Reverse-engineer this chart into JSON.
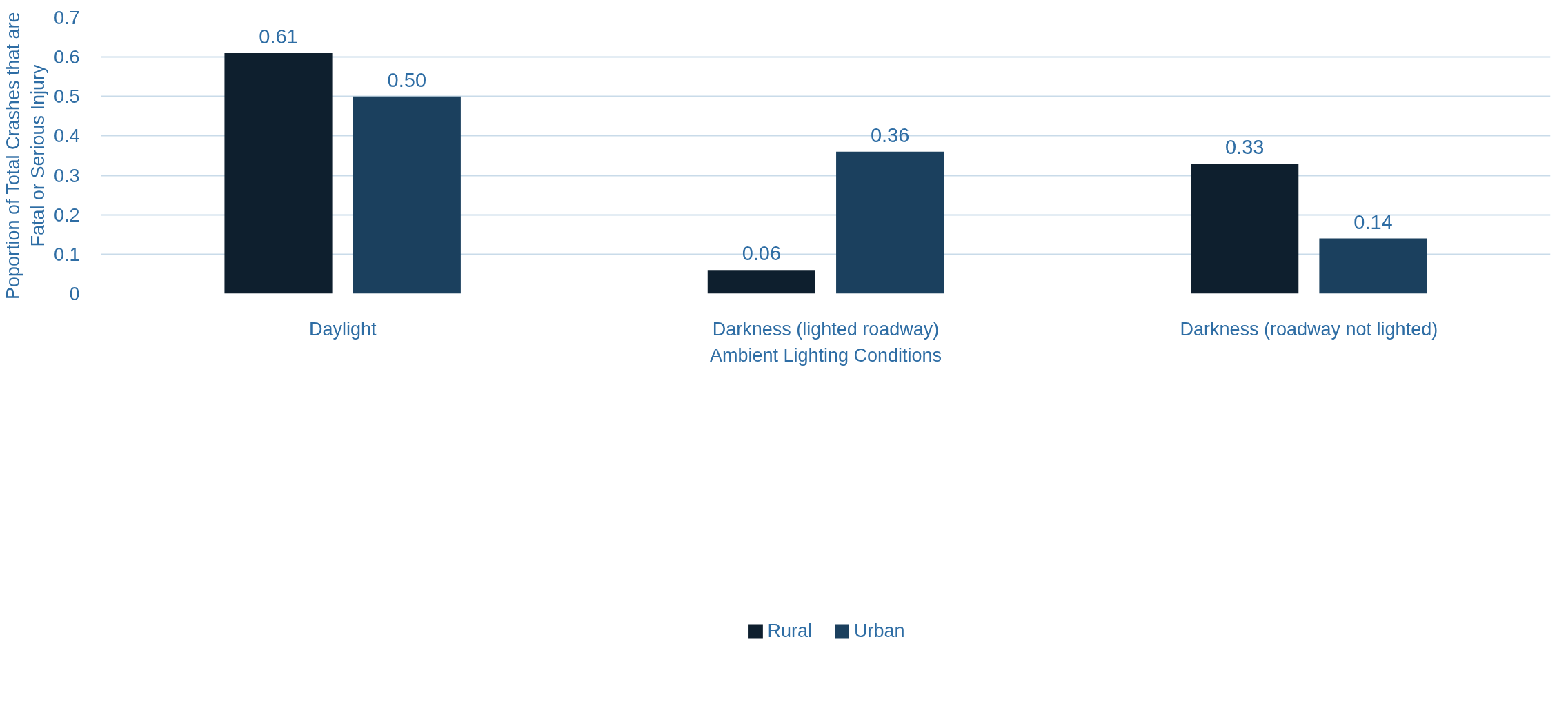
{
  "chart_data": {
    "type": "bar",
    "xlabel": "Ambient Lighting Conditions",
    "ylabel": "Poportion of Total Crashes that are Fatal or Serious Injury",
    "categories": [
      "Daylight",
      "Darkness (lighted roadway)",
      "Darkness (roadway not lighted)"
    ],
    "series": [
      {
        "name": "Rural",
        "color": "#0e1f2e",
        "values": [
          0.61,
          0.06,
          0.33
        ],
        "value_labels": [
          "0.61",
          "0.06",
          "0.33"
        ]
      },
      {
        "name": "Urban",
        "color": "#1b405e",
        "values": [
          0.5,
          0.36,
          0.14
        ],
        "value_labels": [
          "0.50",
          "0.36",
          "0.14"
        ]
      }
    ],
    "ylim": [
      0,
      0.7
    ],
    "yticks": [
      0,
      0.1,
      0.2,
      0.3,
      0.4,
      0.5,
      0.6,
      0.7
    ],
    "grid": "y",
    "legend": "bottom"
  }
}
